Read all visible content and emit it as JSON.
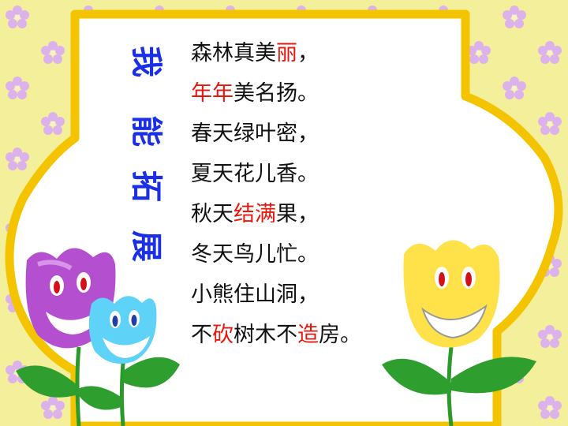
{
  "title": [
    "我",
    "能",
    "拓",
    "展"
  ],
  "poem": [
    {
      "segments": [
        {
          "text": "森林真美",
          "highlight": false
        },
        {
          "text": "丽",
          "highlight": true
        },
        {
          "text": "，",
          "highlight": false
        }
      ]
    },
    {
      "segments": [
        {
          "text": "年年",
          "highlight": true
        },
        {
          "text": "美名扬。",
          "highlight": false
        }
      ]
    },
    {
      "segments": [
        {
          "text": "春天绿叶密，",
          "highlight": false
        }
      ]
    },
    {
      "segments": [
        {
          "text": "夏天花儿香。",
          "highlight": false
        }
      ]
    },
    {
      "segments": [
        {
          "text": "秋天",
          "highlight": false
        },
        {
          "text": "结满",
          "highlight": true
        },
        {
          "text": "果，",
          "highlight": false
        }
      ]
    },
    {
      "segments": [
        {
          "text": "冬天鸟儿忙。",
          "highlight": false
        }
      ]
    },
    {
      "segments": [
        {
          "text": "小熊住山洞，",
          "highlight": false
        }
      ]
    },
    {
      "segments": [
        {
          "text": "不",
          "highlight": false
        },
        {
          "text": "砍",
          "highlight": true
        },
        {
          "text": "树木不",
          "highlight": false
        },
        {
          "text": "造",
          "highlight": true
        },
        {
          "text": "房。",
          "highlight": false
        }
      ]
    }
  ],
  "colors": {
    "background": "#f4ef9a",
    "flower_pattern": "#dcb2ec",
    "frame_border": "#f5c400",
    "panel": "#ffffff",
    "title": "#1a2fe6",
    "highlight": "#e8170d",
    "text": "#111111"
  },
  "icons": [
    "flower-pattern",
    "purple-tulip-face",
    "blue-tulip-face",
    "yellow-tulip-face"
  ]
}
